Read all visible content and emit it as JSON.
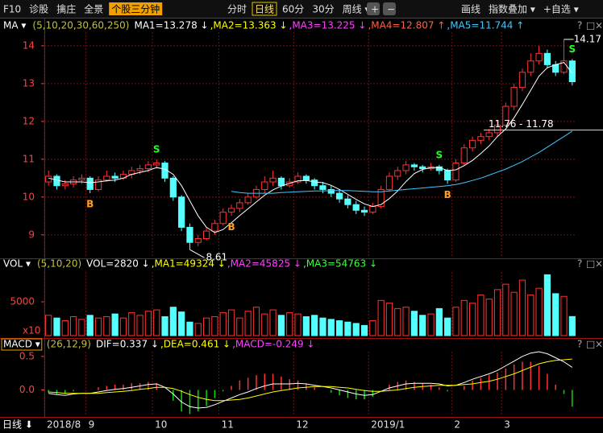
{
  "toolbar": {
    "tools": [
      "F10",
      "诊股",
      "擒庄",
      "全景",
      "个股三分钟"
    ],
    "periods": [
      "分时",
      "日线",
      "60分",
      "30分",
      "周线 ▾"
    ],
    "zoom": [
      "+",
      "−"
    ],
    "actions": [
      "画线",
      "指数叠加 ▾",
      "+自选 ▾"
    ]
  },
  "panel_controls": [
    "?",
    "□",
    "×"
  ],
  "period_label": "日线 ⬇",
  "chart_data": [
    {
      "type": "candlestick",
      "indicator": "MA ▾",
      "params": "(5,10,20,30,60,250)",
      "legend": [
        {
          "text": "MA1=13.278 ↓",
          "color": "#ffffff"
        },
        {
          "text": ",MA2=13.363 ↓",
          "color": "#ffff00"
        },
        {
          "text": ",MA3=13.225 ↓",
          "color": "#ff40ff"
        },
        {
          "text": ",MA4=12.807 ↑",
          "color": "#ff6040"
        },
        {
          "text": ",MA5=11.744 ↑",
          "color": "#40c8ff"
        }
      ],
      "categories": [
        "2018/8",
        null,
        null,
        null,
        null,
        "9",
        null,
        null,
        null,
        null,
        null,
        null,
        null,
        "10",
        null,
        null,
        null,
        null,
        null,
        null,
        null,
        "11",
        null,
        null,
        null,
        null,
        null,
        null,
        null,
        null,
        "12",
        null,
        null,
        null,
        null,
        null,
        null,
        null,
        null,
        "2019/1",
        null,
        null,
        null,
        null,
        null,
        null,
        null,
        null,
        null,
        "2",
        null,
        null,
        null,
        null,
        null,
        "3",
        null,
        null,
        null,
        null,
        null,
        null,
        null,
        null
      ],
      "ohlc": [
        [
          10.4,
          10.7,
          10.3,
          10.55
        ],
        [
          10.55,
          10.6,
          10.2,
          10.3
        ],
        [
          10.3,
          10.45,
          10.2,
          10.35
        ],
        [
          10.35,
          10.55,
          10.25,
          10.45
        ],
        [
          10.45,
          10.6,
          10.35,
          10.5
        ],
        [
          10.5,
          10.55,
          10.1,
          10.2
        ],
        [
          10.2,
          10.55,
          10.15,
          10.45
        ],
        [
          10.45,
          10.7,
          10.4,
          10.55
        ],
        [
          10.55,
          10.65,
          10.4,
          10.5
        ],
        [
          10.5,
          10.7,
          10.45,
          10.6
        ],
        [
          10.6,
          10.8,
          10.5,
          10.7
        ],
        [
          10.7,
          10.85,
          10.6,
          10.75
        ],
        [
          10.75,
          10.95,
          10.65,
          10.85
        ],
        [
          10.85,
          11.0,
          10.75,
          10.9
        ],
        [
          10.9,
          10.95,
          10.4,
          10.5
        ],
        [
          10.5,
          10.55,
          9.9,
          10.0
        ],
        [
          10.0,
          10.05,
          9.1,
          9.2
        ],
        [
          9.2,
          9.3,
          8.61,
          8.8
        ],
        [
          8.8,
          9.0,
          8.7,
          8.9
        ],
        [
          8.9,
          9.2,
          8.85,
          9.1
        ],
        [
          9.1,
          9.4,
          9.0,
          9.3
        ],
        [
          9.3,
          9.7,
          9.25,
          9.6
        ],
        [
          9.6,
          9.8,
          9.5,
          9.7
        ],
        [
          9.7,
          9.95,
          9.6,
          9.85
        ],
        [
          9.85,
          10.1,
          9.8,
          10.0
        ],
        [
          10.0,
          10.3,
          9.95,
          10.2
        ],
        [
          10.2,
          10.55,
          10.1,
          10.4
        ],
        [
          10.4,
          10.7,
          10.3,
          10.5
        ],
        [
          10.5,
          10.55,
          10.2,
          10.3
        ],
        [
          10.3,
          10.5,
          10.25,
          10.4
        ],
        [
          10.4,
          10.65,
          10.35,
          10.55
        ],
        [
          10.55,
          10.6,
          10.35,
          10.45
        ],
        [
          10.45,
          10.5,
          10.2,
          10.3
        ],
        [
          10.3,
          10.4,
          10.1,
          10.2
        ],
        [
          10.2,
          10.3,
          10.0,
          10.1
        ],
        [
          10.1,
          10.2,
          9.85,
          9.95
        ],
        [
          9.95,
          10.05,
          9.7,
          9.8
        ],
        [
          9.8,
          9.9,
          9.55,
          9.65
        ],
        [
          9.65,
          9.75,
          9.5,
          9.6
        ],
        [
          9.6,
          9.85,
          9.55,
          9.75
        ],
        [
          9.75,
          10.3,
          9.7,
          10.2
        ],
        [
          10.2,
          10.65,
          10.15,
          10.55
        ],
        [
          10.55,
          10.8,
          10.45,
          10.7
        ],
        [
          10.7,
          10.95,
          10.6,
          10.85
        ],
        [
          10.85,
          10.9,
          10.7,
          10.8
        ],
        [
          10.8,
          10.85,
          10.65,
          10.75
        ],
        [
          10.75,
          10.9,
          10.7,
          10.8
        ],
        [
          10.8,
          10.85,
          10.6,
          10.7
        ],
        [
          10.7,
          10.75,
          10.35,
          10.45
        ],
        [
          10.45,
          11.0,
          10.4,
          10.9
        ],
        [
          10.9,
          11.4,
          10.85,
          11.3
        ],
        [
          11.3,
          11.6,
          11.2,
          11.5
        ],
        [
          11.5,
          11.7,
          11.4,
          11.6
        ],
        [
          11.6,
          11.8,
          11.5,
          11.7
        ],
        [
          11.7,
          12.0,
          11.6,
          11.9
        ],
        [
          11.9,
          12.5,
          11.85,
          12.4
        ],
        [
          12.4,
          13.0,
          12.3,
          12.9
        ],
        [
          12.9,
          13.4,
          12.8,
          13.3
        ],
        [
          13.3,
          13.8,
          13.2,
          13.6
        ],
        [
          13.6,
          14.0,
          13.5,
          13.8
        ],
        [
          13.8,
          13.9,
          13.4,
          13.5
        ],
        [
          13.5,
          13.6,
          13.2,
          13.3
        ],
        [
          13.3,
          14.17,
          13.25,
          13.6
        ],
        [
          13.6,
          13.65,
          12.95,
          13.05
        ]
      ],
      "up_color": "#ff3232",
      "down_color": "#54ffff",
      "series": [
        {
          "color": "#ffffff",
          "values": [
            10.5,
            10.45,
            10.4,
            10.4,
            10.4,
            10.38,
            10.4,
            10.43,
            10.45,
            10.5,
            10.6,
            10.65,
            10.7,
            10.78,
            10.74,
            10.6,
            10.3,
            9.9,
            9.5,
            9.2,
            9.06,
            9.14,
            9.32,
            9.51,
            9.69,
            9.87,
            10.05,
            10.19,
            10.29,
            10.36,
            10.43,
            10.44,
            10.4,
            10.38,
            10.31,
            10.2,
            10.07,
            9.94,
            9.82,
            9.75,
            9.8,
            9.96,
            10.16,
            10.41,
            10.62,
            10.73,
            10.78,
            10.78,
            10.7,
            10.72,
            10.83,
            10.97,
            11.15,
            11.35,
            11.6,
            11.8,
            12.1,
            12.45,
            12.82,
            13.2,
            13.42,
            13.5,
            13.56,
            13.278
          ]
        },
        {
          "color": "#40c8ff",
          "values": [
            null,
            null,
            null,
            null,
            null,
            null,
            null,
            null,
            null,
            null,
            null,
            null,
            null,
            null,
            null,
            null,
            null,
            null,
            null,
            null,
            null,
            null,
            10.15,
            10.12,
            10.1,
            10.1,
            10.1,
            10.1,
            10.12,
            10.13,
            10.14,
            10.15,
            10.16,
            10.16,
            10.17,
            10.17,
            10.17,
            10.16,
            10.15,
            10.14,
            10.14,
            10.16,
            10.18,
            10.2,
            10.22,
            10.24,
            10.26,
            10.28,
            10.3,
            10.33,
            10.38,
            10.44,
            10.5,
            10.58,
            10.66,
            10.74,
            10.84,
            10.94,
            11.06,
            11.18,
            11.32,
            11.46,
            11.6,
            11.744
          ]
        }
      ],
      "ylim": [
        8.4,
        14.36
      ],
      "yticks": [
        9,
        10,
        11,
        12,
        13,
        14
      ],
      "grid": true,
      "high": 14.17,
      "low": 8.61,
      "range_note": {
        "value": 11.77,
        "label": "11.76 - 11.78"
      },
      "signals": [
        {
          "label": "B",
          "at": 5,
          "color": "#ffa020"
        },
        {
          "label": "S",
          "at": 13,
          "color": "#20ff20"
        },
        {
          "label": "B",
          "at": 22,
          "color": "#ffa020"
        },
        {
          "label": "S",
          "at": 47,
          "color": "#20ff20"
        },
        {
          "label": "B",
          "at": 48,
          "color": "#ffa020"
        },
        {
          "label": "S",
          "at": 63,
          "color": "#20ff20"
        }
      ]
    },
    {
      "type": "bar",
      "indicator": "VOL ▾",
      "params": "(5,10,20)",
      "legend": [
        {
          "text": "VOL=2820 ↓",
          "color": "#ffffff"
        },
        {
          "text": ",MA1=49324 ↓",
          "color": "#ffff00"
        },
        {
          "text": ",MA2=45825 ↓",
          "color": "#ff40ff"
        },
        {
          "text": ",MA3=54763 ↓",
          "color": "#40ff40"
        }
      ],
      "values": [
        3000,
        2600,
        2200,
        2800,
        2400,
        3000,
        2600,
        2800,
        3200,
        2600,
        3400,
        3000,
        3600,
        3800,
        2800,
        4200,
        3500,
        2000,
        1800,
        2600,
        2800,
        3400,
        3800,
        2600,
        3600,
        4200,
        3200,
        3800,
        3000,
        3400,
        3200,
        2800,
        3000,
        2600,
        2400,
        2200,
        2000,
        1800,
        1500,
        2200,
        5200,
        4800,
        4000,
        4200,
        3600,
        3000,
        3200,
        4000,
        2600,
        4200,
        5200,
        4800,
        6000,
        5400,
        6800,
        7600,
        6400,
        8200,
        6000,
        7000,
        9000,
        6200,
        5800,
        2820
      ],
      "ylim": [
        0,
        9400
      ],
      "yticks": [
        5000
      ],
      "unit": "x10"
    },
    {
      "type": "macd",
      "indicator": "MACD ▾",
      "params": "(26,12,9)",
      "legend": [
        {
          "text": "DIF=0.337 ↓",
          "color": "#ffffff"
        },
        {
          "text": ",DEA=0.461 ↓",
          "color": "#ffff00"
        },
        {
          "text": ",MACD=-0.249 ↓",
          "color": "#ff40ff"
        }
      ],
      "series": [
        {
          "color": "#ffffff",
          "values": [
            -0.05,
            -0.07,
            -0.08,
            -0.06,
            -0.05,
            -0.05,
            -0.03,
            -0.01,
            0.01,
            0.02,
            0.04,
            0.06,
            0.08,
            0.09,
            0.04,
            -0.06,
            -0.18,
            -0.25,
            -0.27,
            -0.26,
            -0.22,
            -0.17,
            -0.12,
            -0.07,
            -0.03,
            0.02,
            0.06,
            0.09,
            0.09,
            0.09,
            0.1,
            0.09,
            0.07,
            0.05,
            0.03,
            0.0,
            -0.03,
            -0.06,
            -0.08,
            -0.07,
            -0.02,
            0.03,
            0.06,
            0.09,
            0.1,
            0.1,
            0.1,
            0.09,
            0.06,
            0.07,
            0.11,
            0.16,
            0.2,
            0.24,
            0.29,
            0.36,
            0.43,
            0.5,
            0.55,
            0.57,
            0.54,
            0.48,
            0.42,
            0.337
          ]
        },
        {
          "color": "#ffff00",
          "values": [
            -0.03,
            -0.04,
            -0.05,
            -0.05,
            -0.05,
            -0.05,
            -0.05,
            -0.04,
            -0.03,
            -0.02,
            -0.01,
            0.01,
            0.02,
            0.04,
            0.04,
            0.02,
            -0.02,
            -0.07,
            -0.11,
            -0.14,
            -0.16,
            -0.16,
            -0.15,
            -0.14,
            -0.12,
            -0.09,
            -0.06,
            -0.03,
            -0.01,
            0.01,
            0.03,
            0.04,
            0.05,
            0.05,
            0.05,
            0.04,
            0.03,
            0.01,
            -0.01,
            -0.02,
            -0.02,
            -0.01,
            0.0,
            0.02,
            0.04,
            0.05,
            0.06,
            0.07,
            0.07,
            0.07,
            0.08,
            0.09,
            0.11,
            0.13,
            0.16,
            0.2,
            0.24,
            0.29,
            0.34,
            0.39,
            0.42,
            0.44,
            0.45,
            0.461
          ]
        }
      ],
      "values": [
        -0.04,
        -0.06,
        -0.06,
        -0.02,
        0,
        0,
        0.04,
        0.06,
        0.08,
        0.08,
        0.1,
        0.1,
        0.12,
        0.1,
        0,
        -0.16,
        -0.32,
        -0.36,
        -0.32,
        -0.24,
        -0.12,
        -0.02,
        0.06,
        0.14,
        0.18,
        0.22,
        0.24,
        0.24,
        0.2,
        0.16,
        0.14,
        0.1,
        0.04,
        0,
        -0.04,
        -0.08,
        -0.12,
        -0.14,
        -0.14,
        -0.1,
        0,
        0.08,
        0.12,
        0.14,
        0.12,
        0.1,
        0.08,
        0.04,
        -0.02,
        0,
        0.06,
        0.14,
        0.18,
        0.22,
        0.26,
        0.32,
        0.38,
        0.42,
        0.42,
        0.36,
        0.24,
        0.08,
        -0.06,
        -0.249
      ],
      "up_color": "#ff3232",
      "down_color": "#00e000",
      "ylim": [
        -0.39,
        0.57
      ],
      "yticks": [
        {
          "value": 0,
          "label": "0.0"
        },
        0.5
      ]
    }
  ]
}
